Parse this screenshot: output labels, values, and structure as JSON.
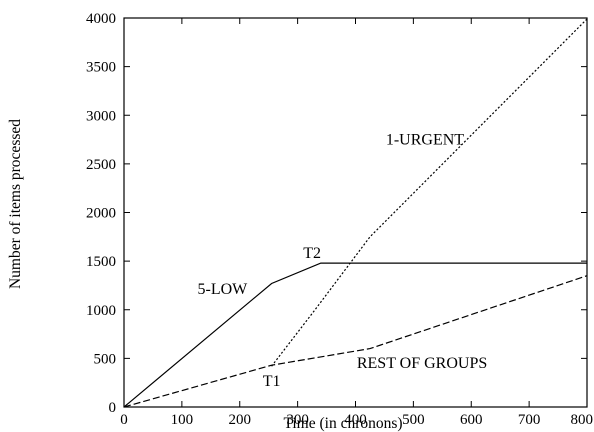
{
  "chart_data": {
    "type": "line",
    "xlabel": "Time (in chronons)",
    "ylabel": "Number of items processed",
    "xlim": [
      0,
      800
    ],
    "ylim": [
      0,
      4000
    ],
    "xticks": [
      0,
      100,
      200,
      300,
      400,
      500,
      600,
      700,
      800
    ],
    "yticks": [
      0,
      500,
      1000,
      1500,
      2000,
      2500,
      3000,
      3500,
      4000
    ],
    "grid": false,
    "legend": "none",
    "series": [
      {
        "label": "5-LOW",
        "style": "solid",
        "points": [
          [
            0,
            0
          ],
          [
            255,
            1270
          ],
          [
            340,
            1480
          ],
          [
            800,
            1480
          ]
        ]
      },
      {
        "label": "1-URGENT",
        "style": "dotted",
        "points": [
          [
            255,
            420
          ],
          [
            330,
            1000
          ],
          [
            425,
            1750
          ],
          [
            800,
            3990
          ]
        ]
      },
      {
        "label": "REST OF GROUPS",
        "style": "dashed",
        "points": [
          [
            0,
            0
          ],
          [
            255,
            430
          ],
          [
            425,
            600
          ],
          [
            800,
            1350
          ]
        ]
      }
    ],
    "annotations": [
      {
        "text": "5-LOW",
        "x": 170,
        "y": 1160
      },
      {
        "text": "1-URGENT",
        "x": 520,
        "y": 2700
      },
      {
        "text": "T2",
        "x": 325,
        "y": 1530
      },
      {
        "text": "T1",
        "x": 255,
        "y": 215
      },
      {
        "text": "REST OF GROUPS",
        "x": 515,
        "y": 400
      }
    ]
  }
}
